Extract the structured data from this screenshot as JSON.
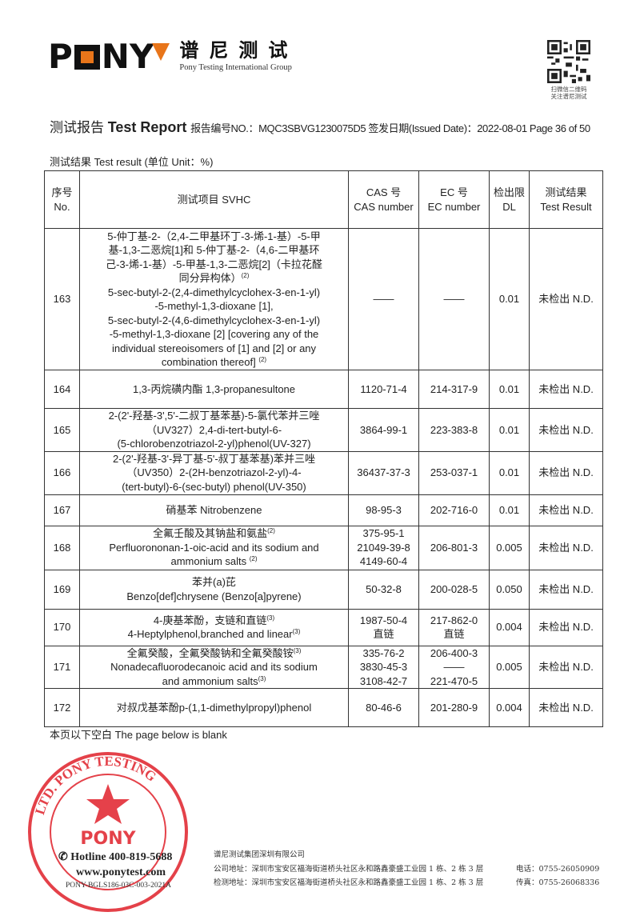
{
  "header": {
    "logo_text": "PONY",
    "logo_cn": "谱尼测试",
    "logo_en": "Pony Testing International Group",
    "qr_caption_1": "扫微信二维码",
    "qr_caption_2": "关注谱尼测试",
    "brand_color": "#e8751a"
  },
  "report": {
    "title_cn": "测试报告",
    "title_en": "Test Report",
    "meta": "报告编号NO.：MQC3SBVG1230075D5 签发日期(Issued Date)：2022-08-01 Page 36 of 50",
    "section": "测试结果  Test result (单位 Unit：%)"
  },
  "table": {
    "headers": [
      [
        "序号",
        "No."
      ],
      [
        "测试项目 SVHC"
      ],
      [
        "CAS 号",
        "CAS number"
      ],
      [
        "EC 号",
        "EC number"
      ],
      [
        "检出限",
        "DL"
      ],
      [
        "测试结果",
        "Test Result"
      ]
    ],
    "rows": [
      {
        "no": "163",
        "name": [
          {
            "t": "5-仲丁基-2-（2,4-二甲基环丁-3-烯-1-基）-5-甲"
          },
          {
            "t": "基-1,3-二恶烷[1]和 5-仲丁基-2-（4,6-二甲基环"
          },
          {
            "t": "己-3-烯-1-基）-5-甲基-1,3-二恶烷[2]（卡拉花醛"
          },
          {
            "t": "同分异构体）",
            "sup": "(2)"
          },
          {
            "t": "5-sec-butyl-2-(2,4-dimethylcyclohex-3-en-1-yl)"
          },
          {
            "t": "-5-methyl-1,3-dioxane [1],"
          },
          {
            "t": "5-sec-butyl-2-(4,6-dimethylcyclohex-3-en-1-yl)"
          },
          {
            "t": "-5-methyl-1,3-dioxane [2] [covering any of the"
          },
          {
            "t": "individual stereoisomers of [1] and [2] or any"
          },
          {
            "t": "combination thereof] ",
            "sup": "(2)"
          }
        ],
        "cas": [
          "——"
        ],
        "ec": [
          "——"
        ],
        "dl": "0.01",
        "result": "未检出 N.D.",
        "h": 177
      },
      {
        "no": "164",
        "name": [
          {
            "t": "1,3-丙烷磺内酯 1,3-propanesultone"
          }
        ],
        "cas": [
          "1120-71-4"
        ],
        "ec": [
          "214-317-9"
        ],
        "dl": "0.01",
        "result": "未检出 N.D.",
        "h": 48
      },
      {
        "no": "165",
        "name": [
          {
            "t": "2-(2'-羟基-3',5'-二叔丁基苯基)-5-氯代苯并三唑"
          },
          {
            "t": "（UV327）2,4-di-tert-butyl-6-"
          },
          {
            "t": "(5-chlorobenzotriazol-2-yl)phenol(UV-327)"
          }
        ],
        "cas": [
          "3864-99-1"
        ],
        "ec": [
          "223-383-8"
        ],
        "dl": "0.01",
        "result": "未检出 N.D.",
        "h": 53
      },
      {
        "no": "166",
        "name": [
          {
            "t": "2-(2'-羟基-3'-异丁基-5'-叔丁基苯基)苯并三唑"
          },
          {
            "t": "（UV350）2-(2H-benzotriazol-2-yl)-4-"
          },
          {
            "t": "(tert-butyl)-6-(sec-butyl) phenol(UV-350)"
          }
        ],
        "cas": [
          "36437-37-3"
        ],
        "ec": [
          "253-037-1"
        ],
        "dl": "0.01",
        "result": "未检出 N.D.",
        "h": 54
      },
      {
        "no": "167",
        "name": [
          {
            "t": "硝基苯 Nitrobenzene"
          }
        ],
        "cas": [
          "98-95-3"
        ],
        "ec": [
          "202-716-0"
        ],
        "dl": "0.01",
        "result": "未检出 N.D.",
        "h": 39
      },
      {
        "no": "168",
        "name": [
          {
            "t": "全氟壬酸及其钠盐和氨盐",
            "sup": "(2)"
          },
          {
            "t": "Perfluorononan-1-oic-acid and its sodium and"
          },
          {
            "t": "ammonium salts ",
            "sup": "(2)"
          }
        ],
        "cas": [
          "375-95-1",
          "21049-39-8",
          "4149-60-4"
        ],
        "ec": [
          "206-801-3"
        ],
        "dl": "0.005",
        "result": "未检出 N.D.",
        "h": 55
      },
      {
        "no": "169",
        "name": [
          {
            "t": "苯并(a)芘"
          },
          {
            "t": "Benzo[def]chrysene (Benzo[a]pyrene)"
          }
        ],
        "cas": [
          "50-32-8"
        ],
        "ec": [
          "200-028-5"
        ],
        "dl": "0.050",
        "result": "未检出 N.D.",
        "h": 49
      },
      {
        "no": "170",
        "name": [
          {
            "t": "4-庚基苯酚，支链和直链",
            "sup": "(3)"
          },
          {
            "t": "4-Heptylphenol,branched and linear",
            "sup": "(3)"
          }
        ],
        "cas": [
          "1987-50-4",
          "直链"
        ],
        "ec": [
          "217-862-0",
          "直链"
        ],
        "dl": "0.004",
        "result": "未检出 N.D.",
        "h": 46
      },
      {
        "no": "171",
        "name": [
          {
            "t": "全氟癸酸，全氟癸酸钠和全氟癸酸铵",
            "sup": "(3)"
          },
          {
            "t": "Nonadecafluorodecanoic acid and its sodium"
          },
          {
            "t": "and ammonium salts",
            "sup": "(3)"
          }
        ],
        "cas": [
          "335-76-2",
          "3830-45-3",
          "3108-42-7"
        ],
        "ec": [
          "206-400-3",
          "——",
          "221-470-5"
        ],
        "dl": "0.005",
        "result": "未检出 N.D.",
        "h": 51
      },
      {
        "no": "172",
        "name": [
          {
            "t": "对叔戊基苯酚p-(1,1-dimethylpropyl)phenol"
          }
        ],
        "cas": [
          "80-46-6"
        ],
        "ec": [
          "201-280-9"
        ],
        "dl": "0.004",
        "result": "未检出 N.D.",
        "h": 48
      }
    ]
  },
  "blank_note": "本页以下空白 The page below is blank",
  "stamp": {
    "text": "PONY TESTING",
    "inner_text": "谱尼测试集团深圳有限公司",
    "color": "#e0202a"
  },
  "footer": {
    "hotline": "Hotline 400-819-5688",
    "website": "www.ponytest.com",
    "form_no": "PONY-BGLS186-03C-003-2021A",
    "company": "谱尼测试集团深圳有限公司",
    "address_company": "公司地址：深圳市宝安区福海街道桥头社区永和路鑫豪盛工业园 1 栋、2 栋 3 层",
    "address_lab": "检测地址：深圳市宝安区福海街道桥头社区永和路鑫豪盛工业园 1 栋、2 栋 3 层",
    "phone": "电话：0755-26050909",
    "fax": "传真：0755-26068336"
  }
}
